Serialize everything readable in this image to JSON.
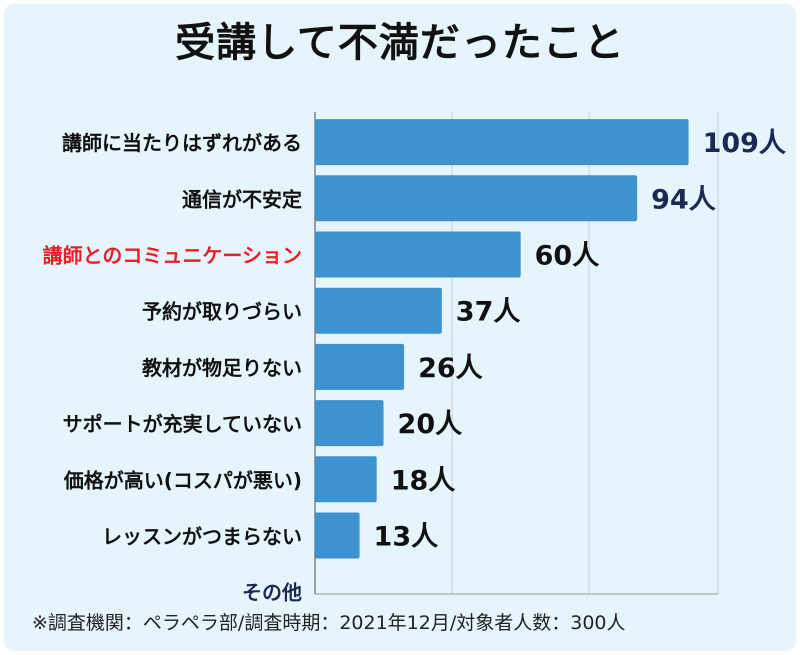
{
  "chart_data": {
    "type": "bar",
    "orientation": "horizontal",
    "title": "受講して不満だったこと",
    "categories": [
      "講師に当たりはずれがある",
      "通信が不安定",
      "講師とのコミュニケーション",
      "予約が取りづらい",
      "教材が物足りない",
      "サポートが充実していない",
      "価格が高い(コスパが悪い)",
      "レッスンがつまらない",
      "その他"
    ],
    "values": [
      109,
      94,
      60,
      37,
      26,
      20,
      18,
      13,
      null
    ],
    "data_labels": [
      "109人",
      "94人",
      "60人",
      "37人",
      "26人",
      "20人",
      "18人",
      "13人",
      ""
    ],
    "highlight_category": "講師とのコミュニケーション",
    "xlim": [
      0,
      110
    ],
    "grid": "vertical",
    "legend": "none"
  },
  "footnote": "※調査機関：ペラペラ部/調査時期：2021年12月/対象者人数：300人",
  "colors": {
    "background": "#e6f4fc",
    "bar": "#3d93d2",
    "label": "#111111",
    "value_dark": "#1a2a55",
    "value_normal": "#111111",
    "highlight": "#e8202a",
    "other_label": "#1a2a55",
    "grid": "#c7cdd6"
  }
}
